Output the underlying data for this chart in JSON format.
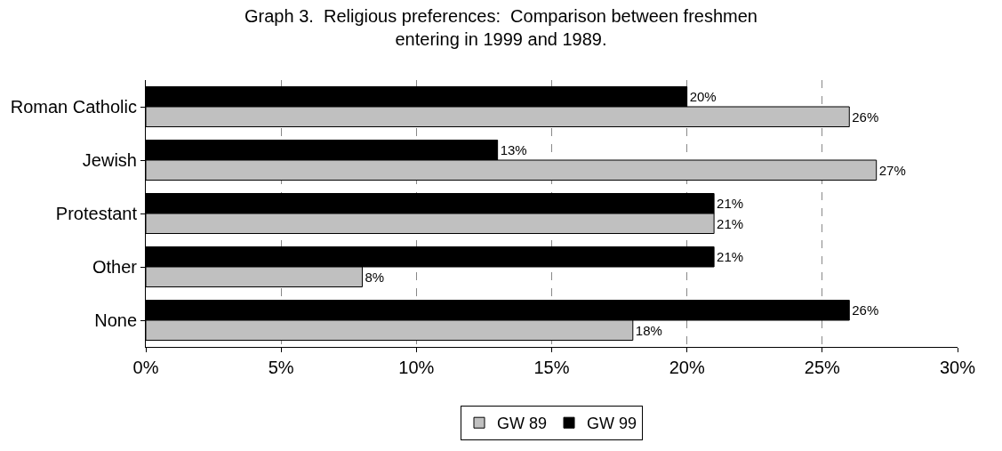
{
  "chart_data": {
    "type": "bar",
    "orientation": "horizontal",
    "title": "Graph 3.  Religious preferences:  Comparison between freshmen\nentering in 1999 and 1989.",
    "categories": [
      "Roman Catholic",
      "Jewish",
      "Protestant",
      "Other",
      "None"
    ],
    "series": [
      {
        "name": "GW 89",
        "color": "#c0c0c0",
        "values": [
          26,
          27,
          21,
          8,
          18
        ],
        "value_labels": [
          "26%",
          "27%",
          "21%",
          "8%",
          "18%"
        ]
      },
      {
        "name": "GW 99",
        "color": "#000000",
        "values": [
          20,
          13,
          21,
          21,
          26
        ],
        "value_labels": [
          "20%",
          "13%",
          "21%",
          "21%",
          "26%"
        ]
      }
    ],
    "xlim": [
      0,
      30
    ],
    "xticks": [
      {
        "value": 0,
        "label": "0%"
      },
      {
        "value": 5,
        "label": "5%"
      },
      {
        "value": 10,
        "label": "10%"
      },
      {
        "value": 15,
        "label": "15%"
      },
      {
        "value": 20,
        "label": "20%"
      },
      {
        "value": 25,
        "label": "25%"
      },
      {
        "value": 30,
        "label": "30%"
      }
    ],
    "grid": "x",
    "legend": "bottom"
  }
}
